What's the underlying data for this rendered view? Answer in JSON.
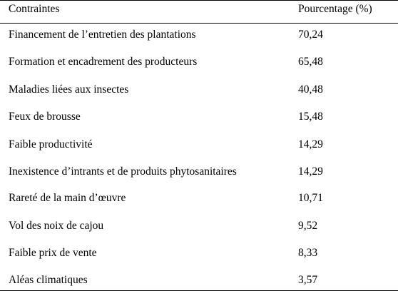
{
  "table": {
    "headers": [
      "Contraintes",
      "Pourcentage (%)"
    ],
    "rows": [
      [
        "Financement de l’entretien des plantations",
        "70,24"
      ],
      [
        "Formation et encadrement  des producteurs",
        "65,48"
      ],
      [
        "Maladies liées aux insectes",
        "40,48"
      ],
      [
        "Feux de brousse",
        "15,48"
      ],
      [
        "Faible productivité",
        "14,29"
      ],
      [
        "Inexistence d’intrants et de produits phytosanitaires",
        "14,29"
      ],
      [
        "Rareté de la main d’œuvre",
        "10,71"
      ],
      [
        "Vol des noix de cajou",
        "9,52"
      ],
      [
        "Faible prix de vente",
        "8,33"
      ],
      [
        "Aléas climatiques",
        "3,57"
      ]
    ]
  }
}
